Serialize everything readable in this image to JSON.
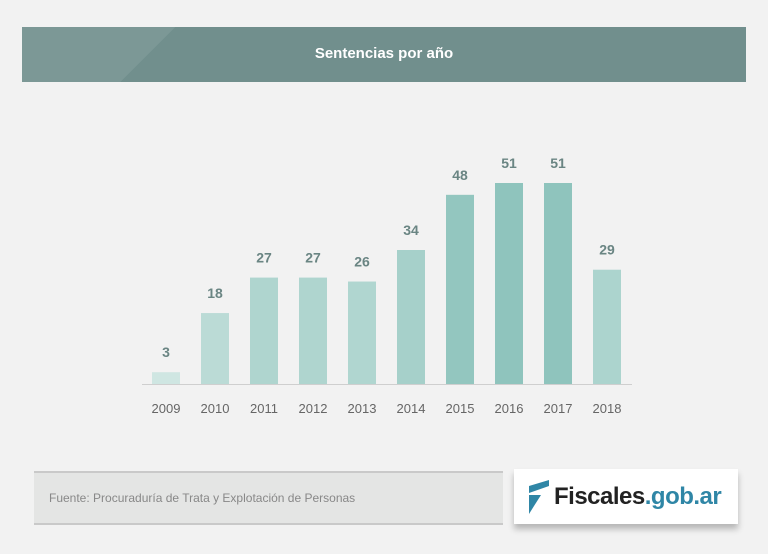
{
  "chart_data": {
    "type": "bar",
    "title": "Sentencias por año",
    "categories": [
      "2009",
      "2010",
      "2011",
      "2012",
      "2013",
      "2014",
      "2015",
      "2016",
      "2017",
      "2018"
    ],
    "values": [
      3,
      18,
      27,
      27,
      26,
      34,
      48,
      51,
      51,
      29
    ],
    "data_labels": true,
    "grid": false,
    "ylim": [
      0,
      51
    ],
    "colors": {
      "low": "#d3e8e4",
      "high": "#8fc4bd",
      "label": "#6a8583"
    }
  },
  "source": "Fuente: Procuraduría de Trata y Explotación de Personas",
  "logo": {
    "text_main": "Fiscales",
    "text_domain": ".gob.ar",
    "brand_color": "#2f86a6"
  }
}
